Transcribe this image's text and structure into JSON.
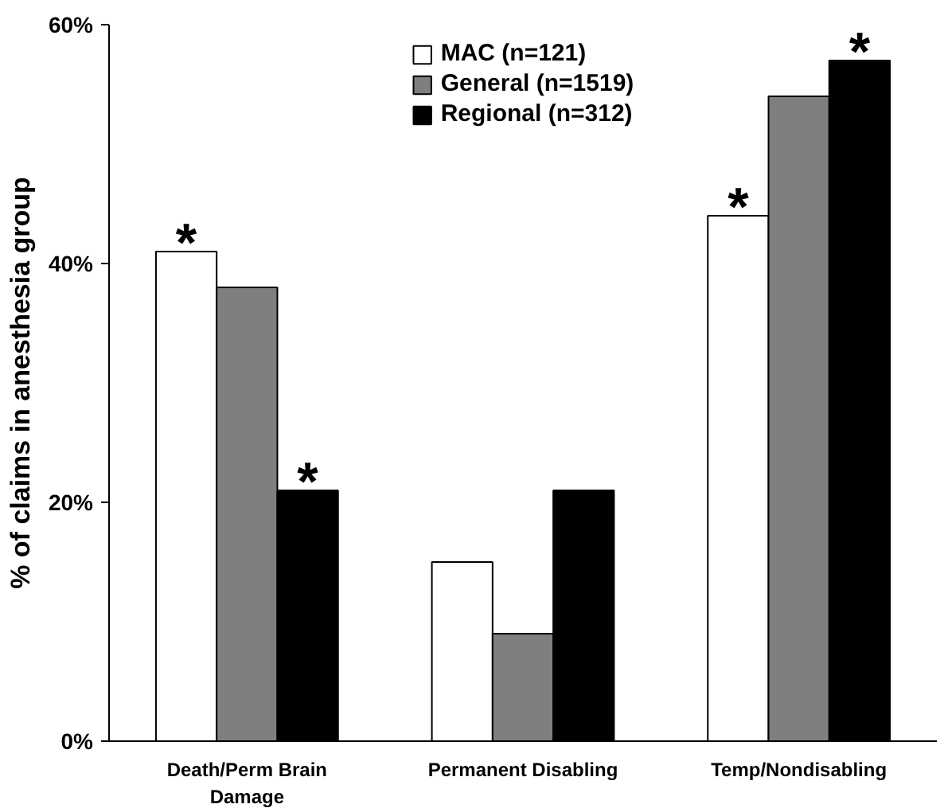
{
  "chart_data": {
    "type": "bar",
    "ylabel": "% of claims in anesthesia group",
    "categories": [
      "Death/Perm Brain Damage",
      "Permanent Disabling",
      "Temp/Nondisabling"
    ],
    "series": [
      {
        "name": "MAC (n=121)",
        "color": "#ffffff",
        "values": [
          41,
          15,
          44
        ],
        "value_labels": [
          "*",
          null,
          "*"
        ]
      },
      {
        "name": "General (n=1519)",
        "color": "#7f7f7f",
        "values": [
          38,
          9,
          54
        ]
      },
      {
        "name": "Regional (n=312)",
        "color": "#000000",
        "values": [
          21,
          21,
          57
        ],
        "value_labels": [
          "*",
          null,
          "*"
        ]
      }
    ],
    "ylim": [
      0,
      60
    ],
    "yticks": [
      {
        "value": 0,
        "label": "0%"
      },
      {
        "value": 20,
        "label": "20%"
      },
      {
        "value": 40,
        "label": "40%"
      },
      {
        "value": 60,
        "label": "60%"
      }
    ],
    "grid": false,
    "legend": "top"
  }
}
